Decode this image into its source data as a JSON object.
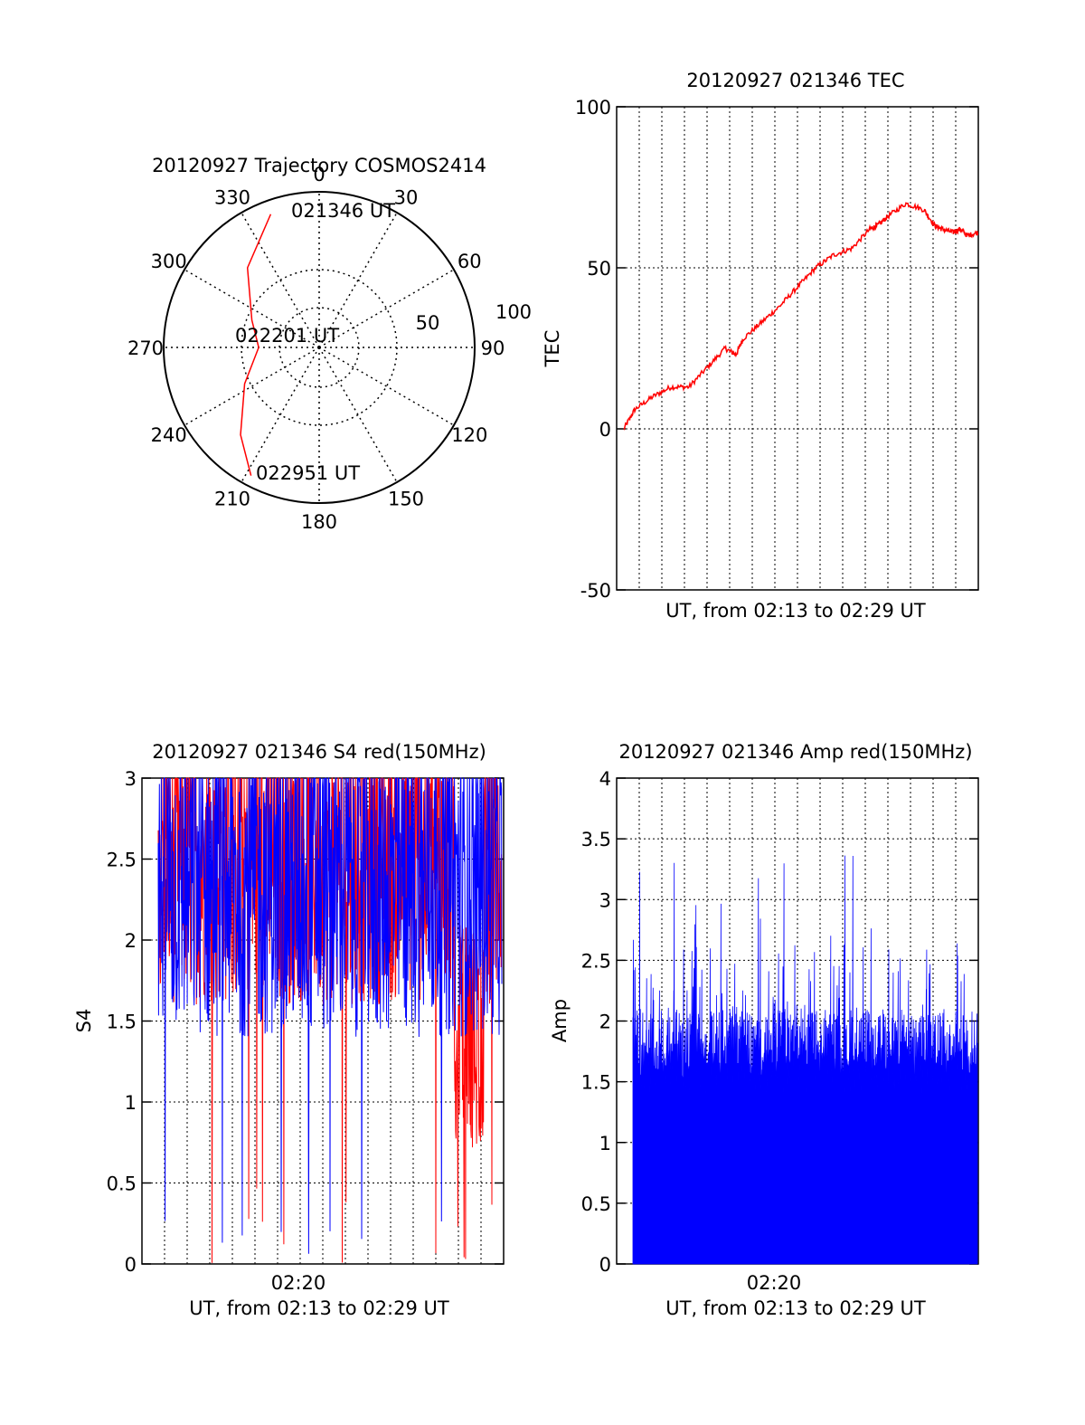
{
  "chart_data": [
    {
      "type": "polar",
      "title": "20120927 Trajectory COSMOS2414",
      "azimuth_labels": [
        "0",
        "30",
        "60",
        "90",
        "120",
        "150",
        "180",
        "210",
        "240",
        "270",
        "300",
        "330"
      ],
      "elevation_labels": [
        "50",
        "100"
      ],
      "rings_elevation": [
        0,
        50,
        90
      ],
      "trajectory_color": "#ff0000",
      "trajectory": [
        {
          "az": 340,
          "el": 8,
          "label": "021346 UT"
        },
        {
          "az": 318,
          "el": 28
        },
        {
          "az": 292,
          "el": 48
        },
        {
          "az": 270,
          "el": 55,
          "label": "022201 UT"
        },
        {
          "az": 244,
          "el": 42
        },
        {
          "az": 222,
          "el": 22
        },
        {
          "az": 208,
          "el": 6,
          "label": "022951 UT"
        }
      ]
    },
    {
      "type": "line",
      "title": "20120927 021346 TEC",
      "xlabel": "UT, from 02:13 to 02:29 UT",
      "ylabel": "TEC",
      "ylim": [
        -50,
        100
      ],
      "yticks": [
        "100",
        "50",
        "0",
        "-50"
      ],
      "series": [
        {
          "color": "#ff0000",
          "x": [
            0.02,
            0.05,
            0.1,
            0.15,
            0.2,
            0.25,
            0.3,
            0.33,
            0.35,
            0.4,
            0.45,
            0.5,
            0.55,
            0.6,
            0.65,
            0.7,
            0.72,
            0.75,
            0.8,
            0.85,
            0.88,
            0.9,
            0.93,
            0.95,
            0.97,
            1.0
          ],
          "y": [
            0,
            6,
            10,
            13,
            13,
            19,
            25,
            23,
            28,
            33,
            38,
            44,
            50,
            54,
            56,
            62,
            63,
            66,
            70,
            68,
            63,
            62,
            61,
            62,
            60,
            61
          ]
        }
      ]
    },
    {
      "type": "line",
      "title": "20120927 021346 S4 red(150MHz)",
      "xlabel": "UT, from 02:13 to 02:29 UT",
      "ylabel": "S4",
      "xtick": "02:20",
      "ylim": [
        0,
        3
      ],
      "yticks": [
        "3",
        "2.5",
        "2",
        "1.5",
        "1",
        "0.5",
        "0"
      ],
      "series": [
        {
          "color": "#ff0000",
          "description_range": [
            1.3,
            3.0
          ]
        },
        {
          "color": "#0000ff",
          "description_range": [
            1.3,
            3.0
          ]
        }
      ]
    },
    {
      "type": "bar",
      "title": "20120927 021346 Amp red(150MHz)",
      "xlabel": "UT, from 02:13 to 02:29 UT",
      "ylabel": "Amp",
      "xtick": "02:20",
      "ylim": [
        0,
        4
      ],
      "yticks": [
        "4",
        "3.5",
        "3",
        "2.5",
        "2",
        "1.5",
        "1",
        "0.5",
        "0"
      ],
      "series": [
        {
          "color": "#0000ff"
        }
      ]
    }
  ]
}
